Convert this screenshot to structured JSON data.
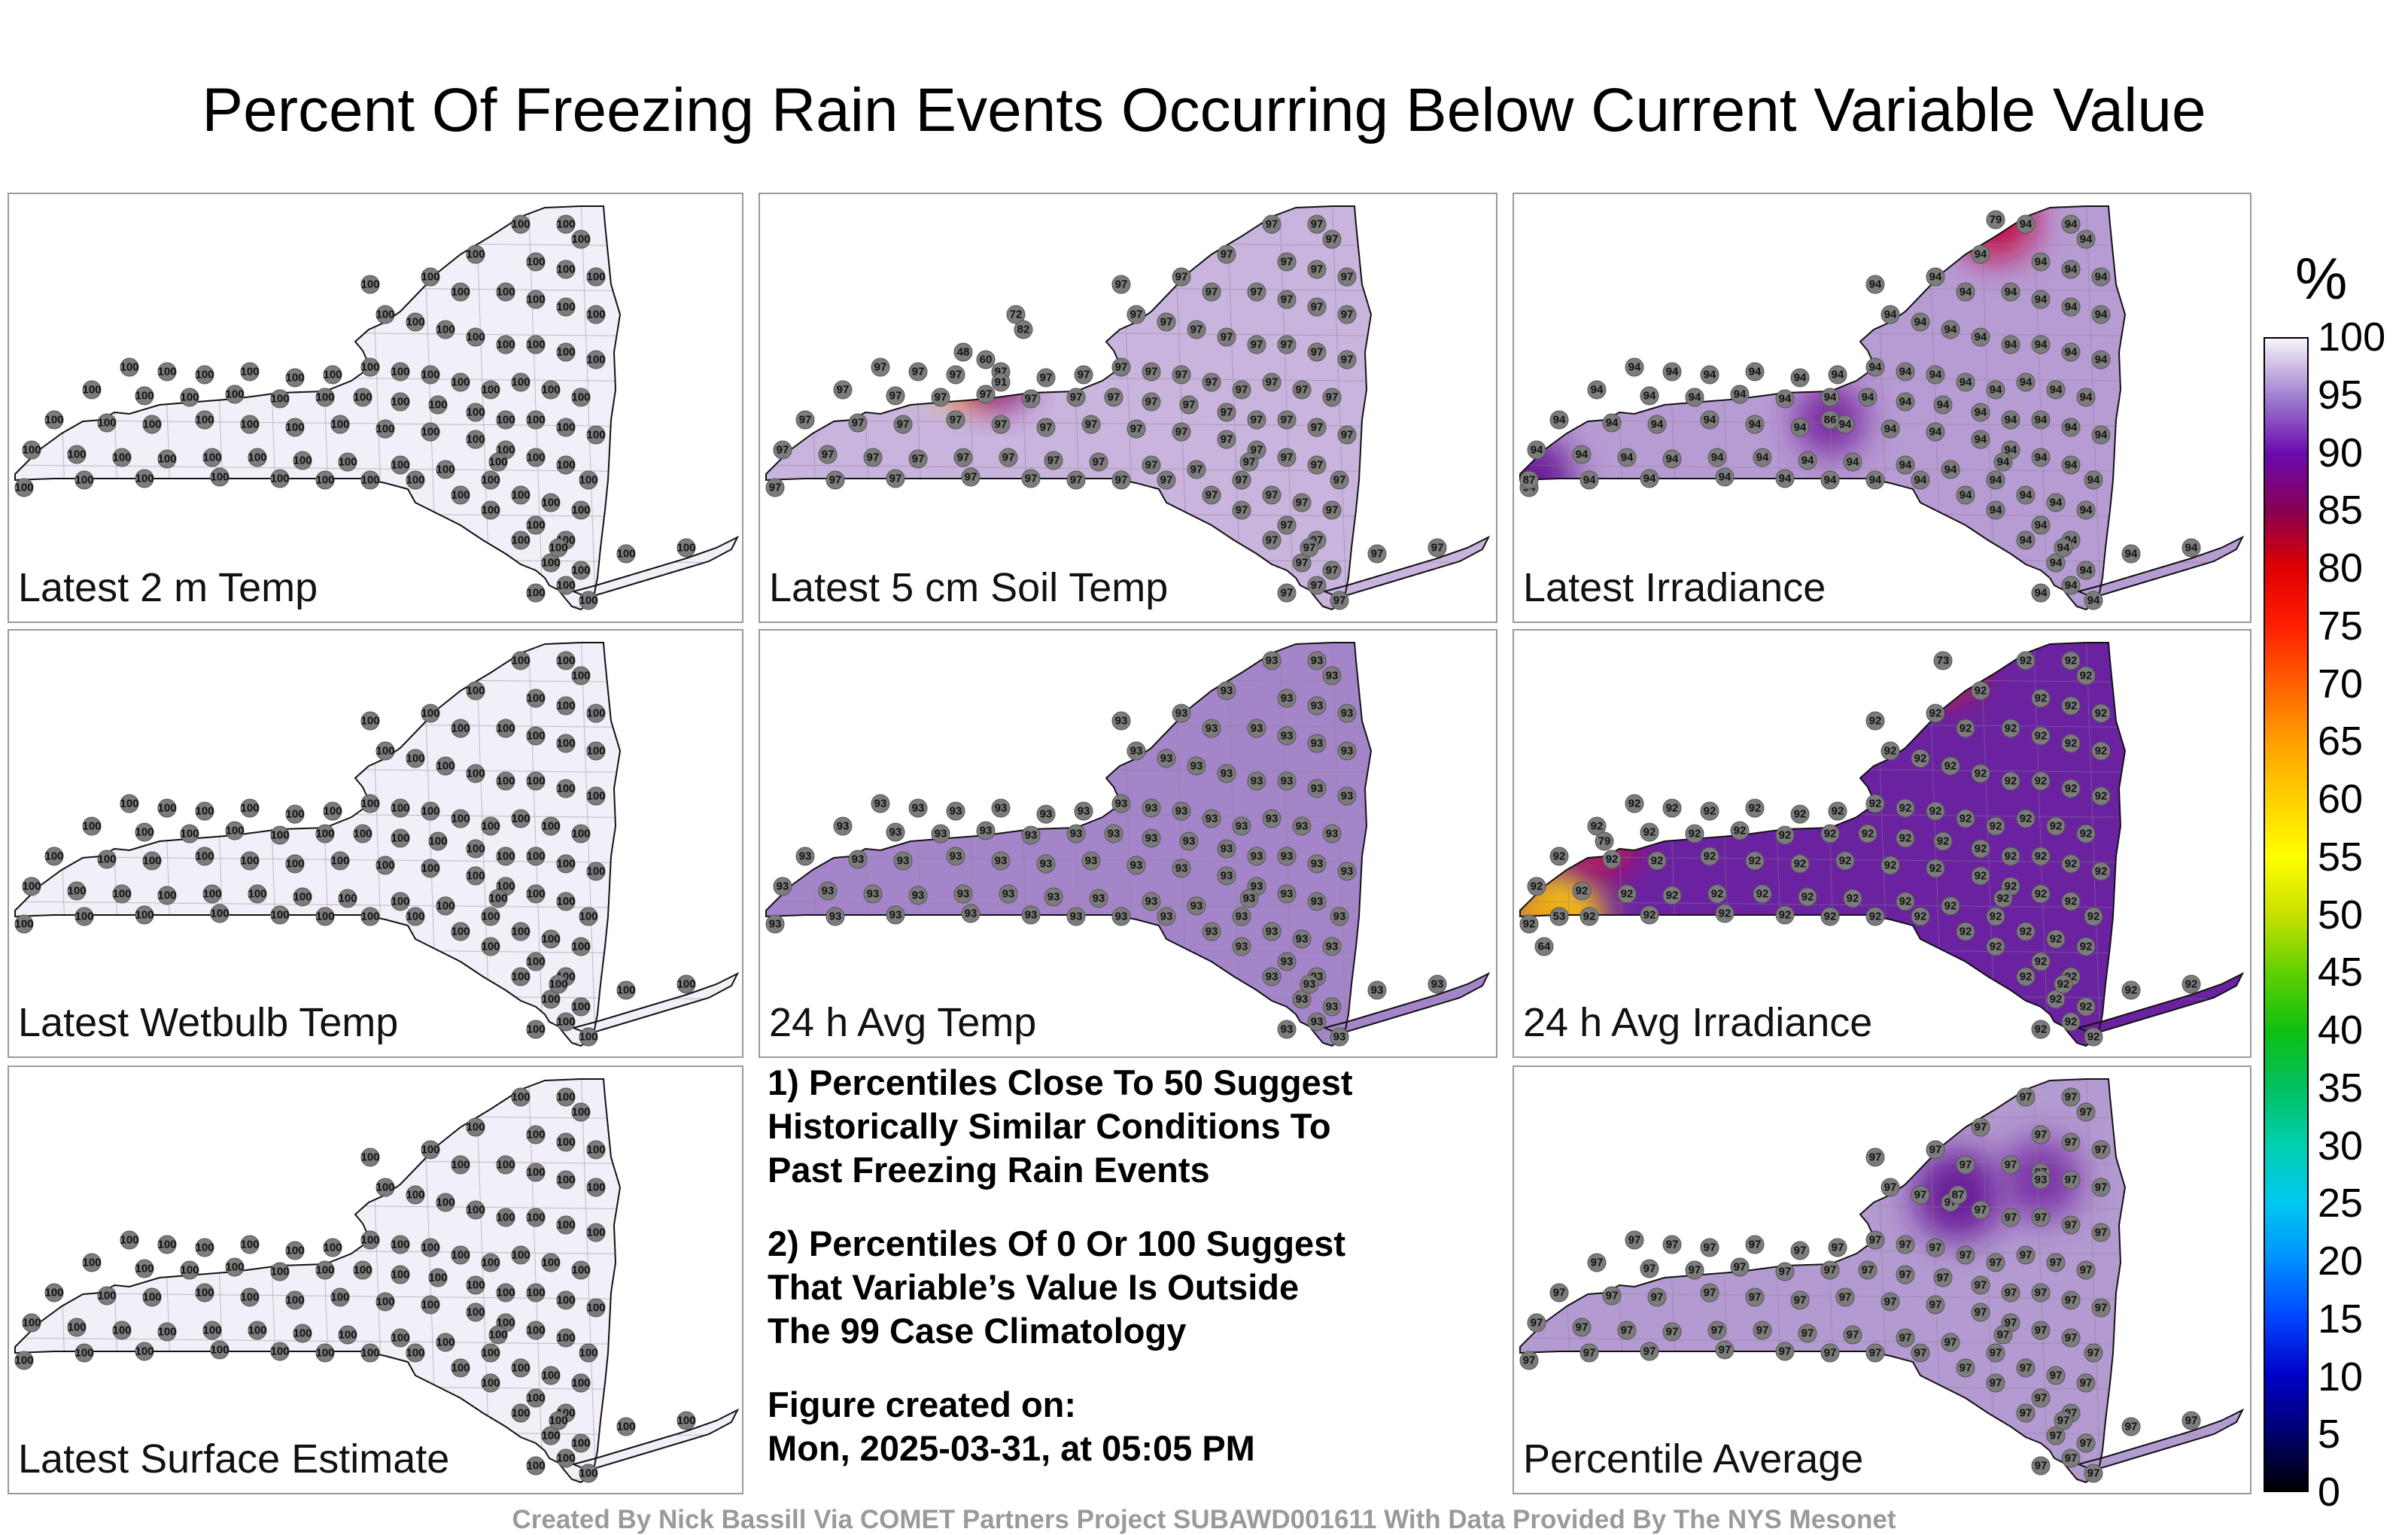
{
  "title": "Percent Of Freezing Rain Events Occurring Below Current Variable Value",
  "panels": [
    {
      "label": "Latest 2 m Temp",
      "fill_color": "#f3eff8",
      "station_value": "100",
      "hotspots": []
    },
    {
      "label": "Latest 5 cm Soil Temp",
      "fill_color": "#c9b4de",
      "station_value": "97",
      "hotspots": [
        {
          "value": "48",
          "color": "#f6d21f"
        },
        {
          "value": "60",
          "color": "#ee1c10"
        },
        {
          "value": "72",
          "color": "#e0120e"
        },
        {
          "value": "82",
          "color": "#c8104a"
        },
        {
          "value": "91",
          "color": "#7f33a6"
        }
      ]
    },
    {
      "label": "Latest Irradiance",
      "fill_color": "#b79bd3",
      "station_value": "94",
      "hotspots": [
        {
          "value": "87",
          "color": "#6a1f9a"
        },
        {
          "value": "79",
          "color": "#c3104c"
        },
        {
          "value": "86",
          "color": "#7a2ca2"
        }
      ]
    },
    {
      "label": "Latest Wetbulb Temp",
      "fill_color": "#f3eff8",
      "station_value": "100",
      "hotspots": []
    },
    {
      "label": "24 h Avg Temp",
      "fill_color": "#a585c9",
      "station_value": "93",
      "hotspots": []
    },
    {
      "label": "24 h Avg Irradiance",
      "fill_color": "#6a22a1",
      "station_value": "92",
      "hotspots": [
        {
          "value": "53",
          "color": "#f4c813"
        },
        {
          "value": "64",
          "color": "#f18a08"
        },
        {
          "value": "73",
          "color": "#e81a10"
        },
        {
          "value": "79",
          "color": "#c8104a"
        }
      ]
    },
    {
      "label": "Latest Surface Estimate",
      "fill_color": "#f3eff8",
      "station_value": "100",
      "hotspots": []
    },
    {
      "label": "Percentile Average",
      "fill_color": "#b39ad0",
      "station_value": "97",
      "hotspots": [
        {
          "value": "87",
          "color": "#6a1f9a"
        },
        {
          "value": "93",
          "color": "#7d35a8"
        }
      ]
    }
  ],
  "notes": {
    "note1": [
      "1) Percentiles Close To 50 Suggest",
      "Historically Similar Conditions To",
      "Past Freezing Rain Events"
    ],
    "note2": [
      "2) Percentiles Of 0 Or 100 Suggest",
      "That Variable’s Value Is Outside",
      "The 99 Case Climatology"
    ],
    "created": [
      "Figure created on:",
      "Mon, 2025-03-31, at 05:05 PM"
    ]
  },
  "colorbar": {
    "unit": "%",
    "ticks": [
      "100",
      "95",
      "90",
      "85",
      "80",
      "75",
      "70",
      "65",
      "60",
      "55",
      "50",
      "45",
      "40",
      "35",
      "30",
      "25",
      "20",
      "15",
      "10",
      "5",
      "0"
    ],
    "stops": [
      {
        "value": 0,
        "color": "#000000"
      },
      {
        "value": 5,
        "color": "#000070"
      },
      {
        "value": 10,
        "color": "#0000c8"
      },
      {
        "value": 15,
        "color": "#0044ff"
      },
      {
        "value": 20,
        "color": "#0090ff"
      },
      {
        "value": 25,
        "color": "#00c8f0"
      },
      {
        "value": 30,
        "color": "#00d0b0"
      },
      {
        "value": 35,
        "color": "#00c060"
      },
      {
        "value": 40,
        "color": "#10c010"
      },
      {
        "value": 45,
        "color": "#60d000"
      },
      {
        "value": 50,
        "color": "#c8e000"
      },
      {
        "value": 55,
        "color": "#ffff00"
      },
      {
        "value": 60,
        "color": "#ffd000"
      },
      {
        "value": 65,
        "color": "#ffa000"
      },
      {
        "value": 70,
        "color": "#ff6000"
      },
      {
        "value": 75,
        "color": "#ff2000"
      },
      {
        "value": 80,
        "color": "#e00000"
      },
      {
        "value": 85,
        "color": "#8a0050"
      },
      {
        "value": 90,
        "color": "#6a0ab0"
      },
      {
        "value": 95,
        "color": "#a080d0"
      },
      {
        "value": 100,
        "color": "#f8f4fb"
      }
    ]
  },
  "credit": "Created By Nick Bassill Via COMET Partners Project SUBAWD001611 With Data Provided By The NYS Mesonet"
}
